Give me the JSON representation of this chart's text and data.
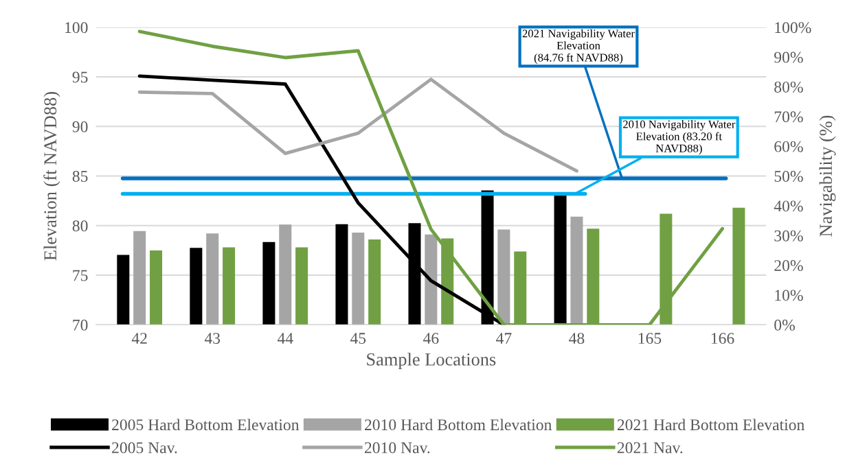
{
  "chart_data": {
    "type": "bar",
    "xlabel": "Sample Locations",
    "ylabel": "Elevation (ft NAVD88)",
    "y2label": "Navigability (%)",
    "categories": [
      "42",
      "43",
      "44",
      "45",
      "46",
      "47",
      "48",
      "165",
      "166"
    ],
    "series": [
      {
        "name": "2005 Hard Bottom Elevation",
        "color": "#000000",
        "values": [
          77.05,
          77.76,
          78.35,
          80.15,
          80.25,
          83.55,
          83.1,
          null,
          null
        ]
      },
      {
        "name": "2010 Hard Bottom Elevation",
        "color": "#a5a5a5",
        "values": [
          79.45,
          79.2,
          80.1,
          79.3,
          79.1,
          79.6,
          80.9,
          null,
          null
        ]
      },
      {
        "name": "2021 Hard Bottom Elevation",
        "color": "#70a043",
        "values": [
          77.5,
          77.8,
          77.8,
          78.6,
          78.7,
          77.4,
          79.7,
          81.2,
          81.8
        ]
      },
      {
        "name": "2005 Nav.",
        "type": "line",
        "axis": "y2",
        "color": "#000000",
        "values": [
          83.6,
          82.2,
          80.9,
          41.0,
          14.8,
          0,
          null,
          null,
          null
        ]
      },
      {
        "name": "2010 Nav.",
        "type": "line",
        "axis": "y2",
        "color": "#a5a5a5",
        "values": [
          78.2,
          77.7,
          57.6,
          64.4,
          82.5,
          64.4,
          51.7,
          null,
          null
        ]
      },
      {
        "name": "2021 Nav.",
        "type": "line",
        "axis": "y2",
        "color": "#70a043",
        "values": [
          98.6,
          93.6,
          89.8,
          92.1,
          32.1,
          0,
          0,
          0,
          32.3
        ]
      }
    ],
    "ylim": [
      70,
      100
    ],
    "yticks": [
      70,
      75,
      80,
      85,
      90,
      95,
      100
    ],
    "y2lim": [
      0,
      100
    ],
    "y2ticks": [
      {
        "value": 0,
        "label": "0%"
      },
      {
        "value": 10,
        "label": "10%"
      },
      {
        "value": 20,
        "label": "20%"
      },
      {
        "value": 30,
        "label": "30%"
      },
      {
        "value": 40,
        "label": "40%"
      },
      {
        "value": 50,
        "label": "50%"
      },
      {
        "value": 60,
        "label": "60%"
      },
      {
        "value": 70,
        "label": "70%"
      },
      {
        "value": 80,
        "label": "80%"
      },
      {
        "value": 90,
        "label": "90%"
      },
      {
        "value": 100,
        "label": "100%"
      }
    ],
    "ref_lines": [
      {
        "axis": "y",
        "value": 84.76,
        "label": "2021 Navigability Water\nElevation\n(84.76 ft NAVD88)",
        "color": "#0070c0"
      },
      {
        "axis": "y",
        "value": 83.2,
        "label": "2010 Navigability Water\nElevation (83.20 ft\nNAVD88)",
        "color": "#00b0f0"
      }
    ],
    "grid": "y",
    "legend": "bottom",
    "marker": "none",
    "line_style": "solid"
  }
}
